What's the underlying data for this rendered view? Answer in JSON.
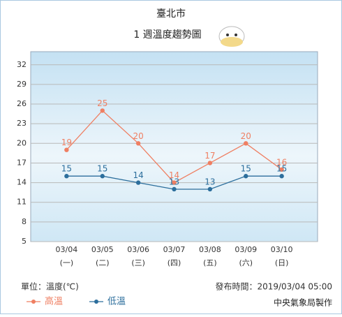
{
  "chart_data": {
    "type": "line",
    "title": "臺北市",
    "subtitle": "1 週溫度趨勢圖",
    "categories": [
      "03/04",
      "03/05",
      "03/06",
      "03/07",
      "03/08",
      "03/09",
      "03/10"
    ],
    "weekdays": [
      "(一)",
      "(二)",
      "(三)",
      "(四)",
      "(五)",
      "(六)",
      "(日)"
    ],
    "series": [
      {
        "name": "高溫",
        "color": "#ef7f62",
        "values": [
          19,
          25,
          20,
          14,
          17,
          20,
          16
        ]
      },
      {
        "name": "低溫",
        "color": "#2c6e9c",
        "values": [
          15,
          15,
          14,
          13,
          13,
          15,
          15
        ]
      }
    ],
    "ylim": [
      5,
      34
    ],
    "yticks": [
      5,
      8,
      11,
      14,
      17,
      20,
      23,
      26,
      29,
      32
    ],
    "grid": true,
    "unit_note": "單位：溫度(℃)",
    "issued": "發布時間：2019/03/04 05:00",
    "credit": "中央氣象局製作"
  }
}
